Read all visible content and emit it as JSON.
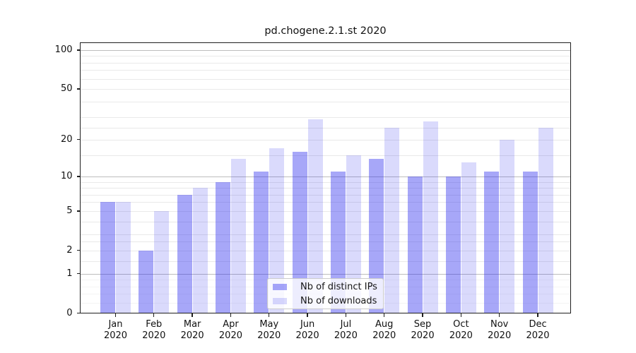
{
  "title": "pd.chogene.2.1.st 2020",
  "chart_data": {
    "type": "bar",
    "title": "pd.chogene.2.1.st 2020",
    "categories": [
      "Jan",
      "Feb",
      "Mar",
      "Apr",
      "May",
      "Jun",
      "Jul",
      "Aug",
      "Sep",
      "Oct",
      "Nov",
      "Dec"
    ],
    "year_label": "2020",
    "series": [
      {
        "name": "Nb of distinct IPs",
        "color": "rgba(34,34,238,0.40)",
        "values": [
          6,
          2,
          7,
          9,
          11,
          16,
          11,
          14,
          10,
          10,
          11,
          11
        ]
      },
      {
        "name": "Nb of downloads",
        "color": "rgba(34,34,238,0.17)",
        "values": [
          6,
          5,
          8,
          14,
          17,
          29,
          15,
          25,
          28,
          13,
          20,
          25
        ]
      }
    ],
    "y_axis": {
      "scale": "log1p",
      "ylim": [
        0,
        114
      ],
      "tick_values": [
        0,
        1,
        2,
        5,
        10,
        20,
        50,
        100
      ],
      "tick_labels": [
        "0",
        "1",
        "2",
        "5",
        "10",
        "20",
        "50",
        "100"
      ],
      "major_gridlines": [
        1,
        10,
        100
      ],
      "minor_gridlines": [
        0.2,
        0.4,
        0.6,
        0.8,
        1.5,
        2,
        2.5,
        3,
        4,
        5,
        6,
        7,
        8,
        9,
        15,
        20,
        25,
        30,
        40,
        50,
        60,
        70,
        80,
        90
      ]
    },
    "grid": true,
    "legend_position": "lower center",
    "colors": {
      "bar_distinct_ips": "rgba(34,34,238,0.40)",
      "bar_downloads": "rgba(34,34,238,0.17)",
      "grid_major": "#bdbdbd",
      "grid_minor": "#e9e9e9",
      "axis": "#1f1f1f"
    }
  },
  "legend": {
    "items": [
      {
        "label": "Nb of distinct IPs"
      },
      {
        "label": "Nb of downloads"
      }
    ]
  }
}
